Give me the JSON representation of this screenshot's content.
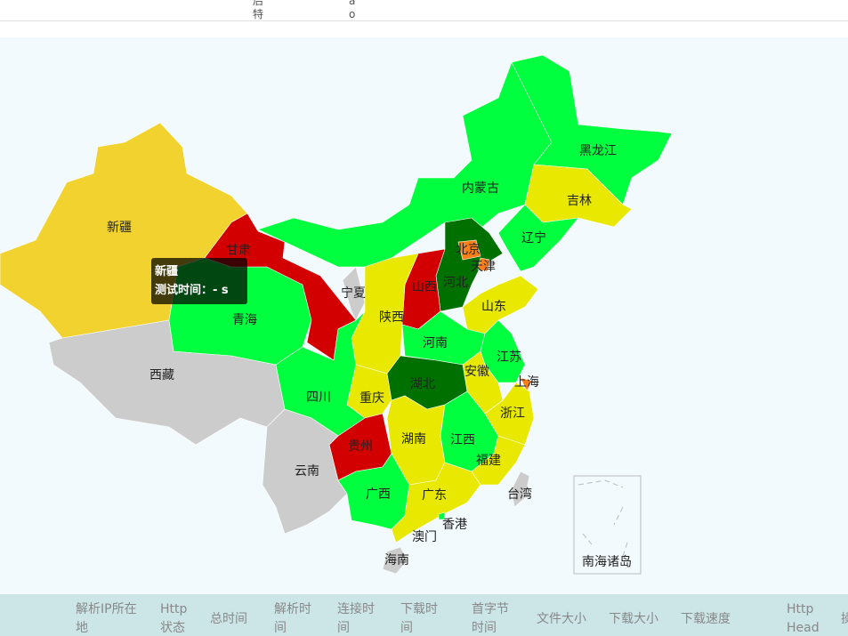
{
  "header_fragments": [
    "后",
    "特",
    "a",
    "o"
  ],
  "map": {
    "regions": [
      "新疆",
      "西藏",
      "青海",
      "甘肃",
      "内蒙古",
      "黑龙江",
      "吉林",
      "辽宁",
      "河北",
      "北京",
      "天津",
      "山西",
      "宁夏",
      "陕西",
      "山东",
      "河南",
      "江苏",
      "安徽",
      "上海",
      "湖北",
      "重庆",
      "四川",
      "浙江",
      "湖南",
      "江西",
      "福建",
      "贵州",
      "云南",
      "广西",
      "广东",
      "海南",
      "香港",
      "澳门",
      "台湾",
      "南海诸岛"
    ],
    "tooltip": {
      "title": "新疆",
      "text": "测试时间：- s"
    }
  },
  "table": {
    "columns": [
      "解析IP所在地",
      "Http状态",
      "总时间",
      "解析时间",
      "连接时间",
      "下载时间",
      "首字节时间",
      "文件大小",
      "下载大小",
      "下载速度",
      "Http Head",
      "操"
    ]
  }
}
